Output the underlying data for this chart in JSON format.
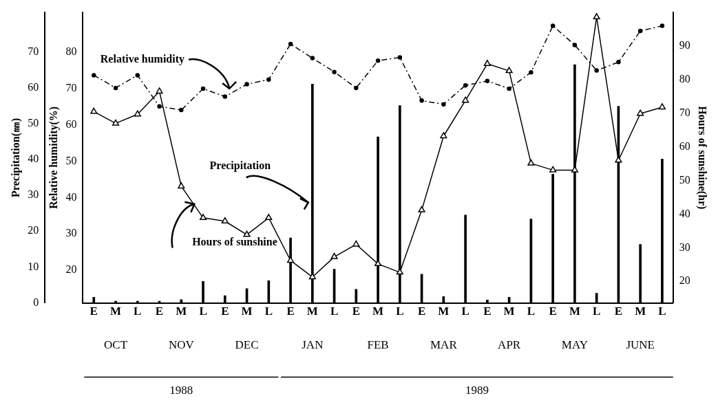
{
  "chart_data": {
    "type": "bar",
    "categories": [
      "E",
      "M",
      "L",
      "E",
      "M",
      "L",
      "E",
      "M",
      "L",
      "E",
      "M",
      "L",
      "E",
      "M",
      "L",
      "E",
      "M",
      "L",
      "E",
      "M",
      "L",
      "E",
      "M",
      "L",
      "E",
      "M",
      "L"
    ],
    "series": [
      {
        "name": "Precipitation",
        "color": "#000000",
        "values": [
          1.6,
          0.5,
          0.5,
          0.5,
          0.9,
          6.0,
          2.0,
          4.0,
          6.2,
          18.1,
          61.0,
          9.4,
          3.8,
          46.3,
          55.0,
          8.0,
          1.8,
          24.5,
          0.8,
          1.6,
          23.4,
          35.9,
          66.4,
          2.7,
          54.8,
          16.3,
          40.1
        ]
      },
      {
        "name": "Relative humidity",
        "type": "line",
        "axis": "y2",
        "color": "#000000",
        "marker": "circle",
        "line_style": "dashed",
        "values": [
          73.7,
          70.2,
          73.7,
          65.1,
          64.1,
          70.0,
          67.8,
          71.2,
          72.5,
          82.3,
          78.4,
          74.6,
          70.2,
          77.7,
          78.6,
          66.7,
          65.7,
          70.9,
          72.1,
          70.0,
          74.5,
          87.3,
          82.0,
          75.0,
          77.3,
          85.9,
          87.3
        ]
      },
      {
        "name": "Hours of sunshine",
        "type": "line",
        "axis": "y3",
        "color": "#000000",
        "marker": "triangle",
        "line_style": "solid",
        "values": [
          70.5,
          67.0,
          69.7,
          76.5,
          48.3,
          38.9,
          37.9,
          33.9,
          38.9,
          26.2,
          21.3,
          27.3,
          31.0,
          25.2,
          22.7,
          41.2,
          63.2,
          73.8,
          84.7,
          82.6,
          55.1,
          53.1,
          53.1,
          98.6,
          56.0,
          69.9,
          71.8
        ]
      }
    ],
    "ylabel": "Precipitation(㎜)",
    "ylim": [
      0,
      81
    ],
    "yticks": [
      0,
      10,
      20,
      30,
      40,
      50,
      60,
      70
    ],
    "y2label": "Relative humidity(%)",
    "y2lim": [
      11,
      91
    ],
    "y2ticks": [
      20,
      30,
      40,
      50,
      60,
      70,
      80
    ],
    "y3label": "Hours of sunshine(hr)",
    "y3lim": [
      13.6,
      100
    ],
    "y3ticks": [
      20,
      30,
      40,
      50,
      60,
      70,
      80,
      90
    ],
    "annotations": [
      "OCT",
      "NOV",
      "DEC",
      "JAN",
      "FEB",
      "MAR",
      "APR",
      "MAY",
      "JUNE",
      "1988",
      "1989"
    ],
    "grid": false,
    "legend": false
  }
}
